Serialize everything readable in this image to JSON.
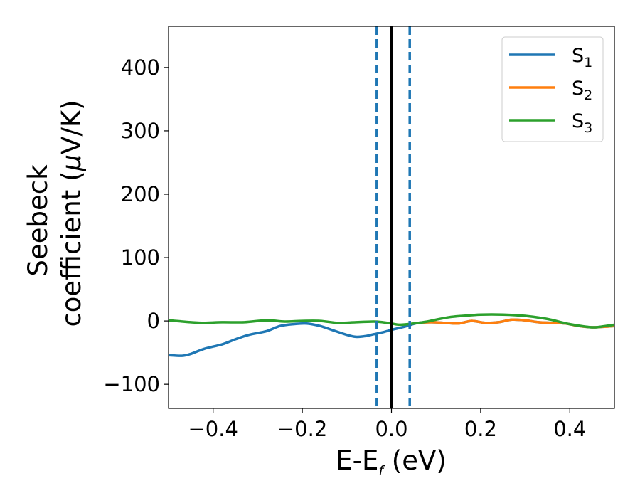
{
  "chart_data": {
    "type": "line",
    "xlabel": {
      "main": "E-E",
      "sub": "f",
      "unit": " (eV)"
    },
    "ylabel": {
      "line1": "Seebeck",
      "line2": "coefficient  (",
      "mu": "μ",
      "unit": "V/K)"
    },
    "xlim": [
      -0.5,
      0.5
    ],
    "ylim": [
      -138,
      465
    ],
    "xticks": [
      -0.4,
      -0.2,
      0.0,
      0.2,
      0.4
    ],
    "xtick_labels": [
      "−0.4",
      "−0.2",
      "0.0",
      "0.2",
      "0.4"
    ],
    "yticks": [
      -100,
      0,
      100,
      200,
      300,
      400
    ],
    "ytick_labels": [
      "−100",
      "0",
      "100",
      "200",
      "300",
      "400"
    ],
    "grid": false,
    "legend_position": "top-right",
    "series": [
      {
        "name": "S",
        "sub": "1",
        "color": "#1f77b4",
        "x": [
          -0.5,
          -0.47,
          -0.45,
          -0.42,
          -0.38,
          -0.35,
          -0.32,
          -0.28,
          -0.25,
          -0.22,
          -0.19,
          -0.16,
          -0.13,
          -0.1,
          -0.08,
          -0.06,
          -0.04,
          -0.02,
          0.0,
          0.03,
          0.06,
          0.09,
          0.12,
          0.15,
          0.18,
          0.21,
          0.24,
          0.27,
          0.3,
          0.33,
          0.36,
          0.39,
          0.42,
          0.45,
          0.48,
          0.5
        ],
        "y": [
          -54,
          -55,
          -52,
          -44,
          -37,
          -29,
          -22,
          -16,
          -8,
          -5,
          -4,
          -8,
          -15,
          -22,
          -25,
          -24,
          -21,
          -18,
          -14,
          -9,
          -3,
          -2,
          -3,
          -4,
          0,
          -3,
          -2,
          2,
          1,
          -2,
          -3,
          -4,
          -8,
          -10,
          -9,
          -8
        ]
      },
      {
        "name": "S",
        "sub": "2",
        "color": "#ff7f0e",
        "x": [
          0.06,
          0.09,
          0.12,
          0.15,
          0.18,
          0.21,
          0.24,
          0.27,
          0.3,
          0.33,
          0.36,
          0.39,
          0.42,
          0.45,
          0.48,
          0.5
        ],
        "y": [
          -3,
          -2,
          -3,
          -4,
          0,
          -3,
          -2,
          2,
          1,
          -2,
          -3,
          -4,
          -8,
          -10,
          -9,
          -8
        ]
      },
      {
        "name": "S",
        "sub": "3",
        "color": "#2ca02c",
        "x": [
          -0.5,
          -0.45,
          -0.42,
          -0.38,
          -0.33,
          -0.28,
          -0.24,
          -0.2,
          -0.16,
          -0.12,
          -0.08,
          -0.04,
          -0.02,
          0.0,
          0.02,
          0.05,
          0.08,
          0.1,
          0.13,
          0.16,
          0.2,
          0.25,
          0.3,
          0.35,
          0.4,
          0.45,
          0.48,
          0.5
        ],
        "y": [
          1,
          -2,
          -3,
          -2,
          -2,
          1,
          -1,
          0,
          0,
          -3,
          -2,
          -1,
          -2,
          -4,
          -6,
          -4,
          -1,
          2,
          6,
          8,
          10,
          10,
          8,
          3,
          -5,
          -10,
          -8,
          -6
        ]
      }
    ],
    "vlines": [
      {
        "x": -0.033,
        "color": "#1f77b4",
        "style": "dashed"
      },
      {
        "x": 0.0,
        "color": "#000000",
        "style": "solid"
      },
      {
        "x": 0.041,
        "color": "#1f77b4",
        "style": "dashed"
      }
    ]
  }
}
